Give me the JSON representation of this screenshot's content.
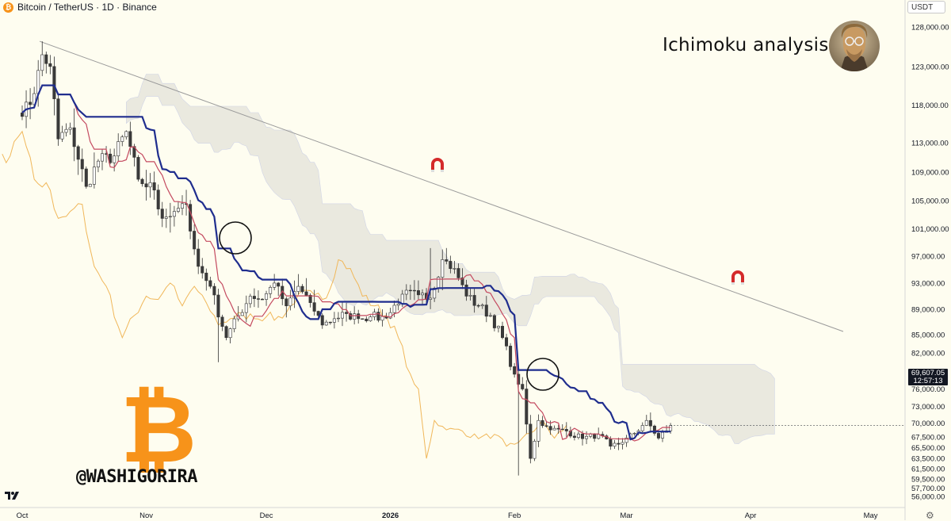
{
  "header": {
    "symbol_text": "Bitcoin / TetherUS · 1D · Binance",
    "coin_glyph": "₿"
  },
  "currency_button": "USDT",
  "annotation": {
    "title": "Ichimoku analysis",
    "watermark": "@WASHIGORIRA",
    "watermark_glyph": "₿"
  },
  "price_tag": {
    "price": "69,607.05",
    "countdown": "12:57:13"
  },
  "colors": {
    "background": "#fefdf0",
    "kijun": "#1f2d8e",
    "tenkan": "#c4495f",
    "chikou": "#f0b75a",
    "cloud": "#e3e2da",
    "trendline": "#9a9a9a",
    "btc_orange": "#f7931a"
  },
  "chart_data": {
    "type": "candlestick",
    "indicators": [
      "Tenkan-sen",
      "Kijun-sen",
      "Chikou span",
      "Kumo cloud"
    ],
    "y_ticks": [
      "128,000.00",
      "123,000.00",
      "118,000.00",
      "113,000.00",
      "109,000.00",
      "105,000.00",
      "101,000.00",
      "97,000.00",
      "93,000.00",
      "89,000.00",
      "85,000.00",
      "82,000.00",
      "79,000.00",
      "76,000.00",
      "73,000.00",
      "70,000.00",
      "67,500.00",
      "65,500.00",
      "63,500.00",
      "61,500.00",
      "59,500.00",
      "57,700.00",
      "56,000.00"
    ],
    "x_ticks": [
      "Oct",
      "Nov",
      "Dec",
      "2026",
      "Feb",
      "Mar",
      "Apr",
      "May"
    ],
    "y_scale": "log",
    "grid": false,
    "last_price": 69607.05,
    "closes": [
      [
        "2025-10-01",
        116500
      ],
      [
        "2025-10-04",
        119500
      ],
      [
        "2025-10-06",
        124500
      ],
      [
        "2025-10-08",
        123000
      ],
      [
        "2025-10-10",
        113500
      ],
      [
        "2025-10-13",
        115000
      ],
      [
        "2025-10-17",
        107000
      ],
      [
        "2025-10-20",
        110500
      ],
      [
        "2025-10-24",
        111200
      ],
      [
        "2025-10-27",
        114500
      ],
      [
        "2025-10-30",
        108000
      ],
      [
        "2025-11-03",
        106500
      ],
      [
        "2025-11-05",
        102500
      ],
      [
        "2025-11-08",
        103500
      ],
      [
        "2025-11-11",
        104500
      ],
      [
        "2025-11-14",
        95500
      ],
      [
        "2025-11-17",
        92500
      ],
      [
        "2025-11-21",
        84500
      ],
      [
        "2025-11-24",
        88000
      ],
      [
        "2025-11-27",
        91000
      ],
      [
        "2025-11-30",
        90500
      ],
      [
        "2025-12-03",
        93000
      ],
      [
        "2025-12-06",
        89500
      ],
      [
        "2025-12-09",
        92500
      ],
      [
        "2025-12-12",
        90000
      ],
      [
        "2025-12-15",
        86500
      ],
      [
        "2025-12-18",
        87500
      ],
      [
        "2025-12-21",
        88300
      ],
      [
        "2025-12-24",
        87500
      ],
      [
        "2025-12-27",
        87800
      ],
      [
        "2025-12-31",
        87600
      ],
      [
        "2026-01-04",
        91300
      ],
      [
        "2026-01-08",
        91200
      ],
      [
        "2026-01-11",
        90700
      ],
      [
        "2026-01-14",
        96500
      ],
      [
        "2026-01-17",
        95200
      ],
      [
        "2026-01-20",
        91000
      ],
      [
        "2026-01-23",
        89500
      ],
      [
        "2026-01-26",
        88000
      ],
      [
        "2026-01-29",
        84500
      ],
      [
        "2026-02-01",
        78500
      ],
      [
        "2026-02-03",
        76000
      ],
      [
        "2026-02-05",
        63500
      ],
      [
        "2026-02-07",
        70500
      ],
      [
        "2026-02-10",
        68800
      ],
      [
        "2026-02-14",
        68600
      ],
      [
        "2026-02-18",
        67200
      ],
      [
        "2026-02-22",
        68000
      ],
      [
        "2026-02-25",
        65800
      ],
      [
        "2026-02-28",
        66500
      ],
      [
        "2026-03-03",
        68200
      ],
      [
        "2026-03-06",
        70500
      ],
      [
        "2026-03-09",
        67300
      ],
      [
        "2026-03-12",
        69607
      ]
    ]
  }
}
